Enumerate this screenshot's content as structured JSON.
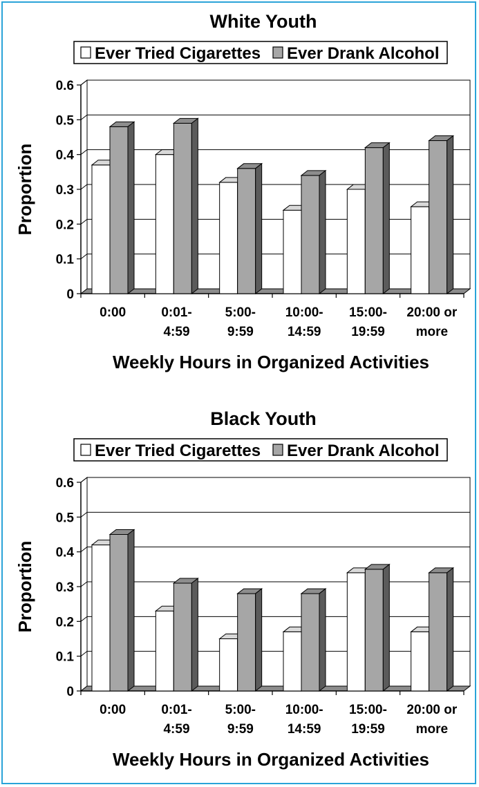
{
  "chart_data": [
    {
      "type": "bar",
      "title": "White Youth",
      "xlabel": "Weekly Hours in Organized Activities",
      "ylabel": "Proportion",
      "ylim": [
        0,
        0.6
      ],
      "yticks": [
        "0",
        "0.1",
        "0.2",
        "0.3",
        "0.4",
        "0.5",
        "0.6"
      ],
      "categories": [
        [
          "0:00"
        ],
        [
          "0:01-",
          "4:59"
        ],
        [
          "5:00-",
          "9:59"
        ],
        [
          "10:00-",
          "14:59"
        ],
        [
          "15:00-",
          "19:59"
        ],
        [
          "20:00 or",
          "more"
        ]
      ],
      "series": [
        {
          "name": "Ever Tried Cigarettes",
          "color": "#ffffff",
          "values": [
            0.37,
            0.4,
            0.32,
            0.24,
            0.3,
            0.25
          ]
        },
        {
          "name": "Ever Drank Alcohol",
          "color": "#a6a6a6",
          "values": [
            0.48,
            0.49,
            0.36,
            0.34,
            0.42,
            0.44
          ]
        }
      ],
      "grid": true,
      "legend_position": "top"
    },
    {
      "type": "bar",
      "title": "Black Youth",
      "xlabel": "Weekly Hours in Organized Activities",
      "ylabel": "Proportion",
      "ylim": [
        0,
        0.6
      ],
      "yticks": [
        "0",
        "0.1",
        "0.2",
        "0.3",
        "0.4",
        "0.5",
        "0.6"
      ],
      "categories": [
        [
          "0:00"
        ],
        [
          "0:01-",
          "4:59"
        ],
        [
          "5:00-",
          "9:59"
        ],
        [
          "10:00-",
          "14:59"
        ],
        [
          "15:00-",
          "19:59"
        ],
        [
          "20:00 or",
          "more"
        ]
      ],
      "series": [
        {
          "name": "Ever Tried Cigarettes",
          "color": "#ffffff",
          "values": [
            0.42,
            0.23,
            0.15,
            0.17,
            0.34,
            0.17
          ]
        },
        {
          "name": "Ever Drank Alcohol",
          "color": "#a6a6a6",
          "values": [
            0.45,
            0.31,
            0.28,
            0.28,
            0.35,
            0.34
          ]
        }
      ],
      "grid": true,
      "legend_position": "top"
    }
  ]
}
